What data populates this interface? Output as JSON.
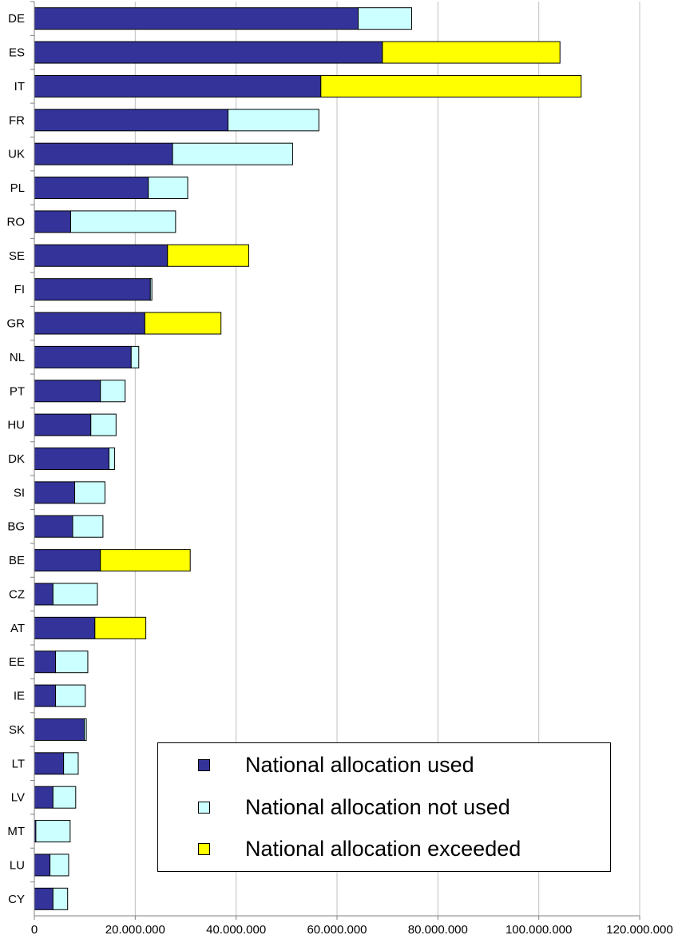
{
  "chart_data": {
    "type": "bar",
    "orientation": "horizontal",
    "stacked": true,
    "title": "",
    "xlabel": "",
    "ylabel": "",
    "xlim": [
      0,
      120000000
    ],
    "x_ticks": [
      0,
      20000000,
      40000000,
      60000000,
      80000000,
      100000000,
      120000000
    ],
    "x_tick_labels": [
      "0",
      "20.000.000",
      "40.000.000",
      "60.000.000",
      "80.000.000",
      "100.000.000",
      "120.000.000"
    ],
    "grid": "vertical",
    "legend_position": "bottom-right",
    "categories": [
      "DE",
      "ES",
      "IT",
      "FR",
      "UK",
      "PL",
      "RO",
      "SE",
      "FI",
      "GR",
      "NL",
      "PT",
      "HU",
      "DK",
      "SI",
      "BG",
      "BE",
      "CZ",
      "AT",
      "EE",
      "IE",
      "SK",
      "LT",
      "LV",
      "MT",
      "LU",
      "CY"
    ],
    "series": [
      {
        "name": "National allocation used",
        "color": "#333399",
        "values": [
          64200000,
          69000000,
          56800000,
          38400000,
          27400000,
          22600000,
          7200000,
          26400000,
          23000000,
          21900000,
          19200000,
          13100000,
          11200000,
          14800000,
          8000000,
          7600000,
          13100000,
          3700000,
          12000000,
          4200000,
          4200000,
          9900000,
          5800000,
          3700000,
          300000,
          3100000,
          3700000
        ]
      },
      {
        "name": "National allocation not used",
        "color": "#CCFFFF",
        "values": [
          10600000,
          0,
          0,
          18000000,
          23800000,
          7800000,
          20800000,
          0,
          300000,
          0,
          1500000,
          4900000,
          5000000,
          1100000,
          6000000,
          6000000,
          0,
          8800000,
          0,
          6400000,
          5900000,
          400000,
          2900000,
          4500000,
          6800000,
          3700000,
          2900000
        ]
      },
      {
        "name": "National allocation exceeded",
        "color": "#FFFF00",
        "values": [
          0,
          35200000,
          51600000,
          0,
          0,
          0,
          0,
          16100000,
          0,
          15100000,
          0,
          0,
          0,
          0,
          0,
          0,
          17800000,
          0,
          10100000,
          0,
          0,
          0,
          0,
          0,
          0,
          0,
          0
        ]
      }
    ]
  },
  "colors": {
    "gridline": "#C0C0C0",
    "axis": "#808080",
    "bar_outline": "#000000"
  }
}
